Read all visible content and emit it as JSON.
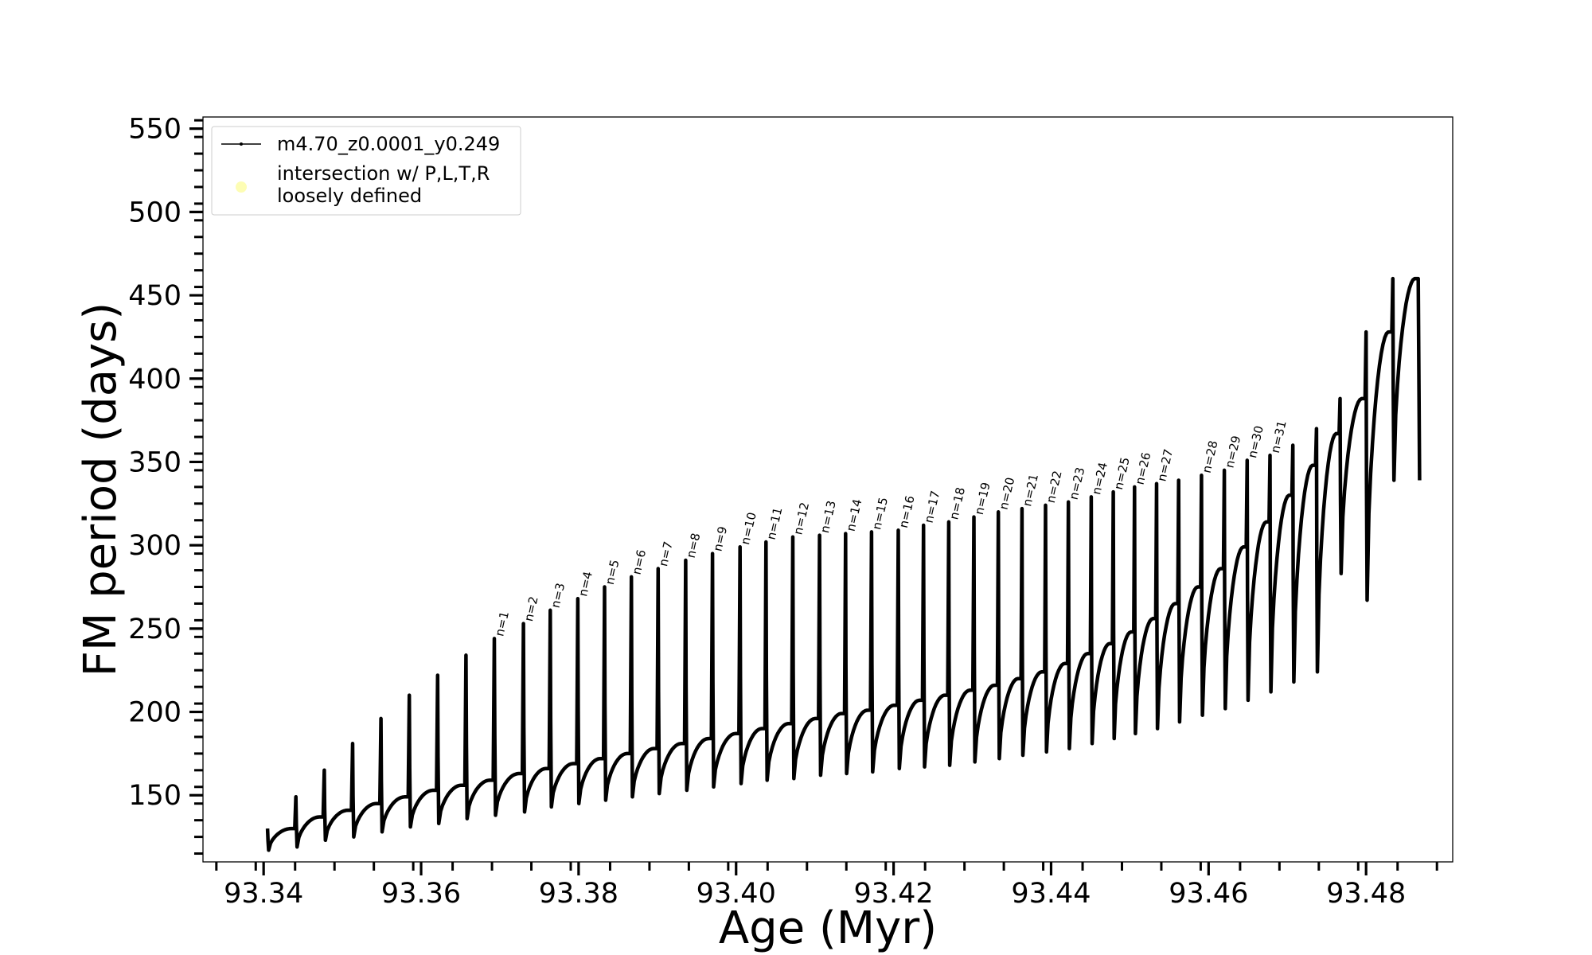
{
  "chart_data": {
    "type": "line",
    "xlabel": "Age (Myr)",
    "ylabel": "FM period (days)",
    "xlim": [
      93.3323,
      93.491
    ],
    "ylim": [
      110,
      557
    ],
    "x_ticks": [
      93.34,
      93.36,
      93.38,
      93.4,
      93.42,
      93.44,
      93.46,
      93.48
    ],
    "x_tick_labels": [
      "93.34",
      "93.36",
      "93.38",
      "93.40",
      "93.42",
      "93.44",
      "93.46",
      "93.48"
    ],
    "y_ticks": [
      150,
      200,
      250,
      300,
      350,
      400,
      450,
      500,
      550
    ],
    "y_tick_labels": [
      "150",
      "200",
      "250",
      "300",
      "350",
      "400",
      "450",
      "500",
      "550"
    ],
    "legend": {
      "placement": "upper left",
      "entries": [
        {
          "label": "m4.70_z0.0001_y0.249",
          "marker": "line",
          "color": "#000000"
        },
        {
          "label_lines": [
            "intersection w/ P,L,T,R",
            "loosely defined"
          ],
          "marker": "circle",
          "color": "#fdfdb4"
        }
      ]
    },
    "series": [
      {
        "name": "m4.70_z0.0001_y0.249",
        "color": "#000000",
        "note_pulses": "each pulse: sharp spike to spike_period, trough to min_period, then rising plateau to plateau_period",
        "pulses": [
          {
            "age": 93.3405,
            "spike": 130,
            "min": 117,
            "plateau": 130
          },
          {
            "age": 93.3441,
            "spike": 149,
            "min": 119,
            "plateau": 137
          },
          {
            "age": 93.3477,
            "spike": 165,
            "min": 123,
            "plateau": 141
          },
          {
            "age": 93.3513,
            "spike": 181,
            "min": 125,
            "plateau": 145
          },
          {
            "age": 93.3549,
            "spike": 196,
            "min": 128,
            "plateau": 149
          },
          {
            "age": 93.3585,
            "spike": 210,
            "min": 131,
            "plateau": 153
          },
          {
            "age": 93.3621,
            "spike": 222,
            "min": 133,
            "plateau": 156
          },
          {
            "age": 93.3657,
            "spike": 234,
            "min": 136,
            "plateau": 159
          },
          {
            "age": 93.3693,
            "spike": 244,
            "min": 138,
            "plateau": 163
          },
          {
            "age": 93.373,
            "spike": 253,
            "min": 140,
            "plateau": 166
          },
          {
            "age": 93.3764,
            "spike": 261,
            "min": 143,
            "plateau": 169
          },
          {
            "age": 93.3799,
            "spike": 268,
            "min": 145,
            "plateau": 172
          },
          {
            "age": 93.3833,
            "spike": 275,
            "min": 147,
            "plateau": 175
          },
          {
            "age": 93.3867,
            "spike": 281,
            "min": 149,
            "plateau": 178
          },
          {
            "age": 93.3901,
            "spike": 286,
            "min": 151,
            "plateau": 181
          },
          {
            "age": 93.3936,
            "spike": 291,
            "min": 153,
            "plateau": 184
          },
          {
            "age": 93.397,
            "spike": 295,
            "min": 155,
            "plateau": 187
          },
          {
            "age": 93.4005,
            "spike": 299,
            "min": 157,
            "plateau": 190
          },
          {
            "age": 93.4038,
            "spike": 302,
            "min": 159,
            "plateau": 193
          },
          {
            "age": 93.4072,
            "spike": 305,
            "min": 160,
            "plateau": 196
          },
          {
            "age": 93.4106,
            "spike": 306,
            "min": 162,
            "plateau": 199
          },
          {
            "age": 93.4139,
            "spike": 307,
            "min": 163,
            "plateau": 201
          },
          {
            "age": 93.4172,
            "spike": 308,
            "min": 164,
            "plateau": 204
          },
          {
            "age": 93.4206,
            "spike": 309,
            "min": 166,
            "plateau": 207
          },
          {
            "age": 93.4238,
            "spike": 312,
            "min": 167,
            "plateau": 210
          },
          {
            "age": 93.427,
            "spike": 314,
            "min": 168,
            "plateau": 213
          },
          {
            "age": 93.4302,
            "spike": 317,
            "min": 170,
            "plateau": 216
          },
          {
            "age": 93.4333,
            "spike": 320,
            "min": 172,
            "plateau": 220
          },
          {
            "age": 93.4363,
            "spike": 322,
            "min": 174,
            "plateau": 224
          },
          {
            "age": 93.4393,
            "spike": 324,
            "min": 176,
            "plateau": 229
          },
          {
            "age": 93.4422,
            "spike": 326,
            "min": 178,
            "plateau": 235
          },
          {
            "age": 93.4451,
            "spike": 329,
            "min": 181,
            "plateau": 241
          },
          {
            "age": 93.4479,
            "spike": 332,
            "min": 184,
            "plateau": 248
          },
          {
            "age": 93.4506,
            "spike": 335,
            "min": 187,
            "plateau": 256
          },
          {
            "age": 93.4534,
            "spike": 337,
            "min": 190,
            "plateau": 265
          },
          {
            "age": 93.4562,
            "spike": 339,
            "min": 194,
            "plateau": 275
          },
          {
            "age": 93.4591,
            "spike": 342,
            "min": 198,
            "plateau": 286
          },
          {
            "age": 93.462,
            "spike": 345,
            "min": 202,
            "plateau": 299
          },
          {
            "age": 93.4649,
            "spike": 351,
            "min": 207,
            "plateau": 314
          },
          {
            "age": 93.4678,
            "spike": 354,
            "min": 212,
            "plateau": 330
          },
          {
            "age": 93.4707,
            "spike": 360,
            "min": 218,
            "plateau": 348
          },
          {
            "age": 93.4737,
            "spike": 370,
            "min": 224,
            "plateau": 367
          },
          {
            "age": 93.4767,
            "spike": 388,
            "min": 283,
            "plateau": 388
          },
          {
            "age": 93.48,
            "spike": 428,
            "min": 267,
            "plateau": 428
          },
          {
            "age": 93.4834,
            "spike": 460,
            "min": 339,
            "plateau": 460
          }
        ]
      }
    ],
    "annotations": [
      {
        "text": "n=1",
        "x": 93.3693,
        "y": 244
      },
      {
        "text": "n=2",
        "x": 93.373,
        "y": 253
      },
      {
        "text": "n=3",
        "x": 93.3764,
        "y": 261
      },
      {
        "text": "n=4",
        "x": 93.3799,
        "y": 268
      },
      {
        "text": "n=5",
        "x": 93.3833,
        "y": 275
      },
      {
        "text": "n=6",
        "x": 93.3867,
        "y": 281
      },
      {
        "text": "n=7",
        "x": 93.3901,
        "y": 286
      },
      {
        "text": "n=8",
        "x": 93.3936,
        "y": 291
      },
      {
        "text": "n=9",
        "x": 93.397,
        "y": 295
      },
      {
        "text": "n=10",
        "x": 93.4005,
        "y": 299
      },
      {
        "text": "n=11",
        "x": 93.4038,
        "y": 302
      },
      {
        "text": "n=12",
        "x": 93.4072,
        "y": 305
      },
      {
        "text": "n=13",
        "x": 93.4106,
        "y": 306
      },
      {
        "text": "n=14",
        "x": 93.4139,
        "y": 307
      },
      {
        "text": "n=15",
        "x": 93.4172,
        "y": 308
      },
      {
        "text": "n=16",
        "x": 93.4206,
        "y": 309
      },
      {
        "text": "n=17",
        "x": 93.4238,
        "y": 312
      },
      {
        "text": "n=18",
        "x": 93.427,
        "y": 314
      },
      {
        "text": "n=19",
        "x": 93.4302,
        "y": 317
      },
      {
        "text": "n=20",
        "x": 93.4333,
        "y": 320
      },
      {
        "text": "n=21",
        "x": 93.4363,
        "y": 322
      },
      {
        "text": "n=22",
        "x": 93.4393,
        "y": 324
      },
      {
        "text": "n=23",
        "x": 93.4422,
        "y": 326
      },
      {
        "text": "n=24",
        "x": 93.4451,
        "y": 329
      },
      {
        "text": "n=25",
        "x": 93.4479,
        "y": 332
      },
      {
        "text": "n=26",
        "x": 93.4506,
        "y": 335
      },
      {
        "text": "n=27",
        "x": 93.4534,
        "y": 337
      },
      {
        "text": "n=28",
        "x": 93.4591,
        "y": 342
      },
      {
        "text": "n=29",
        "x": 93.462,
        "y": 345
      },
      {
        "text": "n=30",
        "x": 93.4649,
        "y": 351
      },
      {
        "text": "n=31",
        "x": 93.4678,
        "y": 354
      }
    ],
    "grid": false
  }
}
